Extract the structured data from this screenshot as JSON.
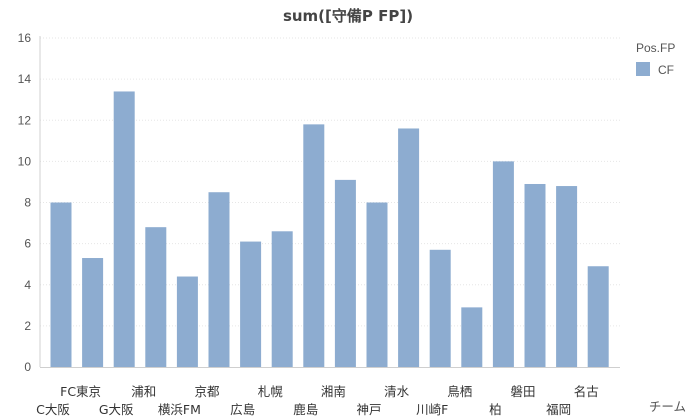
{
  "chart_data": {
    "type": "bar",
    "title": "sum([守備P FP])",
    "xlabel": "チーム",
    "ylabel": "",
    "ylim": [
      0,
      16
    ],
    "yticks": [
      0,
      2,
      4,
      6,
      8,
      10,
      12,
      14,
      16
    ],
    "grid": true,
    "legend": {
      "title": "Pos.FP",
      "position": "top-right",
      "entries": [
        "CF"
      ]
    },
    "categories": [
      "C大阪",
      "FC東京",
      "G大阪",
      "浦和",
      "横浜FM",
      "京都",
      "広島",
      "札幌",
      "鹿島",
      "湘南",
      "神戸",
      "清水",
      "川崎F",
      "鳥栖",
      "柏",
      "磐田",
      "福岡",
      "名古"
    ],
    "series": [
      {
        "name": "CF",
        "color": "#8dacd0",
        "values": [
          8.0,
          5.3,
          13.4,
          6.8,
          4.4,
          8.5,
          6.1,
          6.6,
          11.8,
          9.1,
          8.0,
          11.6,
          5.7,
          2.9,
          10.0,
          8.9,
          8.8,
          4.9
        ]
      }
    ]
  }
}
